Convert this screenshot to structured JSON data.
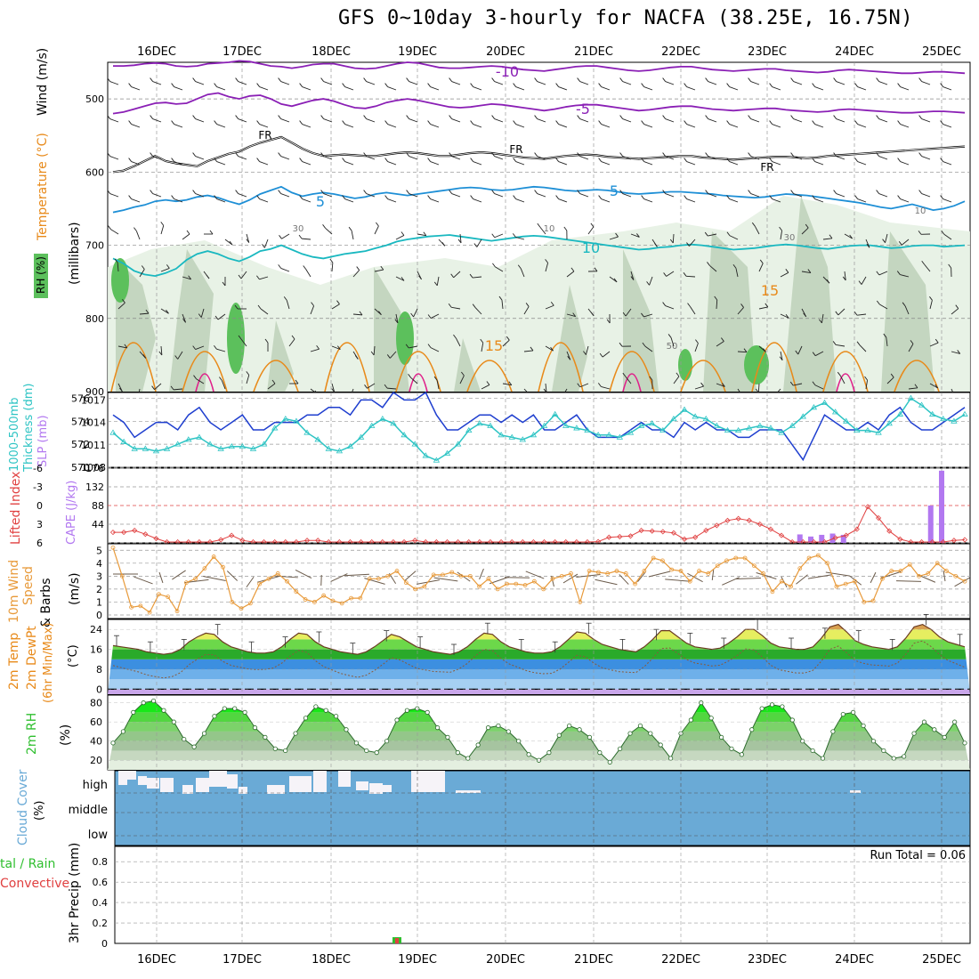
{
  "title": "GFS 0~10day 3-hourly for NACFA (38.25E, 16.75N)",
  "colors": {
    "temp_cold": "#8a1fb5",
    "temp_fr": "#000000",
    "temp_5": "#1e8fd6",
    "temp_10": "#19b8c0",
    "temp_15": "#e88a1a",
    "temp_20": "#e0208a",
    "rh_light": "#e6f1e3",
    "rh_mid": "#c4d6c0",
    "rh_dark": "#8fa890",
    "rh_green": "#5cc05c",
    "slp": "#1f3fcf",
    "thickness": "#2ec4c4",
    "lifted": "#e04040",
    "cape": "#b278f0",
    "wind10": "#e89a3a",
    "cloud": "#6aaad6",
    "precip_rain": "#2fbf2f",
    "precip_conv": "#e04040"
  },
  "chart_data": [
    {
      "id": "upper_air",
      "type": "contour",
      "days": [
        "16DEC",
        "17DEC",
        "18DEC",
        "19DEC",
        "20DEC",
        "21DEC",
        "22DEC",
        "23DEC",
        "24DEC",
        "25DEC"
      ],
      "ylabel": "(millibars)",
      "left_labels": [
        "Wind (m/s)",
        "Temperature (°C)",
        "RH (%)"
      ],
      "yticks": [
        500,
        600,
        700,
        800,
        900
      ],
      "ylim": [
        450,
        900
      ],
      "isotherm_labels": [
        "-10",
        "-5",
        "FR",
        "5",
        "10",
        "15",
        "15"
      ],
      "rh_labels": [
        "30",
        "10",
        "50",
        "30",
        "10"
      ],
      "temp_series": [
        {
          "name": "-10",
          "values": [
            455,
            455,
            454,
            452,
            451,
            452,
            455,
            456,
            455,
            452,
            451,
            450,
            448,
            449,
            452,
            455,
            456,
            458,
            456,
            453,
            452,
            452,
            455,
            458,
            459,
            458,
            455,
            452,
            450,
            451,
            454,
            457,
            458,
            458,
            457,
            456,
            455,
            456,
            458,
            460,
            461,
            462,
            460,
            458,
            456,
            455,
            455,
            457,
            459,
            461,
            462,
            461,
            459,
            457,
            456,
            456,
            458,
            460,
            461,
            462,
            461,
            460,
            459,
            459,
            461,
            462,
            463,
            464,
            463,
            461,
            460,
            461,
            462,
            463,
            464,
            465,
            465,
            464,
            463,
            463,
            464,
            465
          ]
        },
        {
          "name": "-5",
          "values": [
            520,
            518,
            514,
            510,
            506,
            505,
            507,
            506,
            500,
            494,
            492,
            497,
            500,
            496,
            495,
            500,
            507,
            510,
            506,
            502,
            500,
            503,
            508,
            512,
            513,
            510,
            505,
            502,
            500,
            502,
            505,
            508,
            511,
            512,
            511,
            509,
            507,
            508,
            510,
            512,
            514,
            516,
            514,
            511,
            509,
            508,
            508,
            510,
            512,
            514,
            516,
            515,
            513,
            511,
            510,
            510,
            512,
            514,
            515,
            516,
            515,
            514,
            513,
            513,
            515,
            516,
            517,
            518,
            517,
            515,
            514,
            515,
            516,
            517,
            518,
            519,
            519,
            518,
            517,
            517,
            518,
            519
          ]
        },
        {
          "name": "FR",
          "values": [
            600,
            598,
            592,
            585,
            578,
            585,
            588,
            590,
            592,
            585,
            580,
            575,
            572,
            565,
            560,
            556,
            552,
            560,
            568,
            574,
            578,
            577,
            576,
            577,
            578,
            578,
            576,
            574,
            573,
            574,
            576,
            578,
            578,
            576,
            574,
            573,
            574,
            576,
            578,
            580,
            581,
            582,
            580,
            578,
            577,
            576,
            577,
            579,
            580,
            581,
            582,
            581,
            580,
            579,
            578,
            578,
            580,
            581,
            582,
            583,
            582,
            581,
            580,
            579,
            579,
            580,
            581,
            580,
            578,
            577,
            576,
            575,
            574,
            573,
            572,
            571,
            570,
            569,
            568,
            567,
            566,
            565
          ]
        },
        {
          "name": "5",
          "values": [
            655,
            652,
            648,
            645,
            640,
            638,
            640,
            638,
            634,
            632,
            635,
            640,
            644,
            638,
            630,
            625,
            620,
            628,
            633,
            630,
            628,
            630,
            633,
            636,
            634,
            630,
            628,
            630,
            632,
            630,
            628,
            626,
            624,
            622,
            621,
            622,
            624,
            625,
            624,
            622,
            620,
            621,
            623,
            625,
            626,
            625,
            624,
            625,
            627,
            629,
            630,
            629,
            628,
            627,
            627,
            628,
            629,
            630,
            632,
            633,
            634,
            635,
            634,
            632,
            630,
            631,
            632,
            634,
            636,
            638,
            640,
            642,
            645,
            648,
            650,
            647,
            644,
            648,
            652,
            650,
            646,
            640
          ]
        },
        {
          "name": "10",
          "values": [
            718,
            725,
            735,
            740,
            742,
            738,
            732,
            720,
            712,
            708,
            712,
            718,
            722,
            716,
            708,
            705,
            700,
            706,
            712,
            716,
            718,
            715,
            712,
            710,
            708,
            704,
            700,
            695,
            692,
            690,
            688,
            687,
            686,
            688,
            690,
            692,
            694,
            692,
            690,
            688,
            687,
            688,
            690,
            692,
            694,
            696,
            698,
            700,
            702,
            704,
            706,
            705,
            703,
            702,
            700,
            699,
            700,
            702,
            704,
            706,
            705,
            704,
            702,
            700,
            699,
            700,
            702,
            704,
            705,
            703,
            701,
            700,
            700,
            702,
            704,
            703,
            701,
            700,
            700,
            702,
            701,
            700
          ]
        }
      ]
    },
    {
      "id": "slp_thickness",
      "type": "line",
      "y2label": "SLP (mb)",
      "ylabel": "1000-500mb Thickness (dm)",
      "yticks_left": [
        570,
        572,
        574,
        576
      ],
      "yticks_right": [
        1008,
        1011,
        1014,
        1017
      ],
      "ylim_left": [
        570,
        576.5
      ],
      "ylim_right": [
        1008,
        1018
      ],
      "series": [
        {
          "name": "SLP",
          "axis": "right",
          "values": [
            1015,
            1014,
            1012,
            1013,
            1014,
            1014,
            1013,
            1015,
            1016,
            1014,
            1013,
            1014,
            1015,
            1013,
            1013,
            1014,
            1014,
            1014,
            1015,
            1015,
            1016,
            1016,
            1015,
            1017,
            1017,
            1016,
            1018,
            1017,
            1017,
            1018,
            1015,
            1013,
            1013,
            1014,
            1015,
            1015,
            1014,
            1015,
            1014,
            1015,
            1013,
            1013,
            1014,
            1015,
            1013,
            1012,
            1012,
            1012,
            1013,
            1014,
            1013,
            1013,
            1012,
            1014,
            1013,
            1014,
            1013,
            1013,
            1012,
            1012,
            1013,
            1013,
            1013,
            1011,
            1009,
            1012,
            1015,
            1014,
            1013,
            1013,
            1014,
            1013,
            1015,
            1016,
            1014,
            1013,
            1013,
            1014,
            1015,
            1016
          ]
        },
        {
          "name": "Thickness",
          "axis": "left",
          "values": [
            573.0,
            572.2,
            571.6,
            571.6,
            571.4,
            571.6,
            572.0,
            572.4,
            572.6,
            572.0,
            571.6,
            571.8,
            571.8,
            571.6,
            572.0,
            573.4,
            574.2,
            574.0,
            573.0,
            572.4,
            571.6,
            571.4,
            571.8,
            572.6,
            573.6,
            574.2,
            573.8,
            572.8,
            572.0,
            571.0,
            570.6,
            571.2,
            572.0,
            573.2,
            573.8,
            573.6,
            572.8,
            572.6,
            572.4,
            572.8,
            573.6,
            574.6,
            573.6,
            573.4,
            573.2,
            572.8,
            572.8,
            572.6,
            573.0,
            573.6,
            573.8,
            573.2,
            574.2,
            575.0,
            574.4,
            574.2,
            573.6,
            573.2,
            573.2,
            573.4,
            573.6,
            573.4,
            573.0,
            573.6,
            574.4,
            575.2,
            575.6,
            574.8,
            574.0,
            573.2,
            573.2,
            573.0,
            573.8,
            574.6,
            576.0,
            575.4,
            574.6,
            574.2,
            574.0,
            574.6
          ]
        }
      ]
    },
    {
      "id": "lifted_cape",
      "type": "bar",
      "ylabel": "Lifted Index",
      "y2label": "CAPE (J/kg)",
      "yticks_left": [
        "-6",
        "-3",
        "0",
        "3",
        "6"
      ],
      "yticks_right": [
        "44",
        "88",
        "132",
        "176"
      ],
      "ylim_cape": [
        0,
        176
      ],
      "lifted_index": [
        4.3,
        4.3,
        4.0,
        4.6,
        5.3,
        6.0,
        6.5,
        6.5,
        6.5,
        6.6,
        5.5,
        4.8,
        5.6,
        6.5,
        6.5,
        6.5,
        6.5,
        6.5,
        5.6,
        5.6,
        6.5,
        6.5,
        6.5,
        6.5,
        6.6,
        6.5,
        6.5,
        6.5,
        5.6,
        6.5,
        6.5,
        6.5,
        6.5,
        6.5,
        6.5,
        6.5,
        6.5,
        6.5,
        6.5,
        6.5,
        6.5,
        6.5,
        6.5,
        6.5,
        6.5,
        5.8,
        5.1,
        5.0,
        4.9,
        4.0,
        4.1,
        4.2,
        4.4,
        5.4,
        5.1,
        4.0,
        3.2,
        2.4,
        2.1,
        2.4,
        3.0,
        3.8,
        4.8,
        5.9,
        6.6,
        6.6,
        6.1,
        5.2,
        4.8,
        3.8,
        0.2,
        2.0,
        4.1,
        5.4,
        6.4,
        6.6,
        5.9,
        6.2,
        5.6,
        5.5
      ],
      "cape_bars": [
        {
          "slot": 61,
          "value": 20
        },
        {
          "slot": 62,
          "value": 15
        },
        {
          "slot": 63,
          "value": 19
        },
        {
          "slot": 64,
          "value": 22
        },
        {
          "slot": 65,
          "value": 19
        },
        {
          "slot": 73,
          "value": 88
        },
        {
          "slot": 74,
          "value": 170
        }
      ]
    },
    {
      "id": "wind10",
      "type": "line",
      "ylabel": "10m Wind Speed & Barbs (m/s)",
      "yticks": [
        0,
        1,
        2,
        3,
        4,
        5
      ],
      "ylim": [
        0,
        5.5
      ],
      "values": [
        5.2,
        3.0,
        0.6,
        0.7,
        0.2,
        1.6,
        1.4,
        0.3,
        2.5,
        2.8,
        3.6,
        4.5,
        3.7,
        1.0,
        0.5,
        0.9,
        2.4,
        2.8,
        3.2,
        2.6,
        1.8,
        1.2,
        1.0,
        1.5,
        1.1,
        0.9,
        1.3,
        1.3,
        2.8,
        2.8,
        3.0,
        3.4,
        2.5,
        2.0,
        2.2,
        3.1,
        3.1,
        3.3,
        3.0,
        3.0,
        2.2,
        2.8,
        2.0,
        2.4,
        2.4,
        2.3,
        2.6,
        2.0,
        2.8,
        3.0,
        3.2,
        1.0,
        3.4,
        3.3,
        3.2,
        3.4,
        3.2,
        2.4,
        3.4,
        4.4,
        4.2,
        3.5,
        3.4,
        2.6,
        3.4,
        3.2,
        3.8,
        4.2,
        4.4,
        4.4,
        3.8,
        3.2,
        1.8,
        2.6,
        2.2,
        3.6,
        4.4,
        4.6,
        4.0,
        2.2,
        2.4,
        2.6,
        1.0,
        1.1,
        2.8,
        3.4,
        3.4,
        3.9,
        3.0,
        3.2,
        4.0,
        3.4,
        3.0,
        2.6
      ]
    },
    {
      "id": "temp2m",
      "type": "area",
      "ylabel": "2m Temp 2m DewPt (6hr Min/Max) (°C)",
      "yticks": [
        0,
        8,
        16,
        24
      ],
      "ylim": [
        -2,
        28
      ],
      "temperature": [
        17.5,
        17,
        16.5,
        16,
        15,
        14.5,
        14,
        14.5,
        16,
        19,
        21,
        22.5,
        22,
        19,
        17,
        16,
        15,
        14.5,
        14.5,
        15,
        17,
        20,
        22.5,
        22,
        19,
        17,
        16,
        15,
        14.5,
        14,
        15,
        17,
        19.5,
        22,
        21,
        19,
        17,
        16,
        15,
        14.5,
        14,
        15,
        17,
        20,
        22.5,
        22,
        19,
        17,
        16,
        15,
        14.5,
        14.5,
        15,
        17,
        20,
        23,
        22.5,
        20,
        18,
        17,
        16,
        15.5,
        15,
        17,
        20,
        23.5,
        23.5,
        21,
        18.5,
        17,
        16.5,
        16,
        16.5,
        18.5,
        21,
        24,
        24,
        21.5,
        18.5,
        17,
        16.5,
        16,
        16,
        17,
        20.5,
        25,
        26,
        23,
        19.5,
        18,
        17,
        16.5,
        16,
        17,
        20.5,
        25,
        26,
        24,
        21,
        19,
        18,
        17
      ]
    },
    {
      "id": "rh2m",
      "type": "area",
      "ylabel": "2m RH (%)",
      "yticks": [
        20,
        40,
        60,
        80
      ],
      "ylim": [
        10,
        88
      ],
      "values": [
        38,
        50,
        70,
        80,
        82,
        72,
        60,
        42,
        34,
        48,
        66,
        74,
        74,
        70,
        54,
        44,
        32,
        30,
        48,
        64,
        76,
        72,
        66,
        52,
        38,
        30,
        28,
        40,
        62,
        72,
        74,
        70,
        54,
        44,
        28,
        22,
        36,
        54,
        56,
        50,
        40,
        26,
        20,
        28,
        46,
        56,
        52,
        44,
        28,
        18,
        32,
        48,
        56,
        48,
        36,
        22,
        48,
        62,
        80,
        64,
        44,
        32,
        26,
        52,
        74,
        78,
        76,
        62,
        40,
        30,
        22,
        50,
        68,
        70,
        56,
        40,
        30,
        22,
        24,
        48,
        60,
        52,
        44,
        60,
        38
      ]
    },
    {
      "id": "cloud",
      "type": "bar",
      "ylabel": "Cloud Cover (%)",
      "layers": [
        "high",
        "middle",
        "low"
      ]
    },
    {
      "id": "precip",
      "type": "bar",
      "ylabel": "3hr Precip (mm)",
      "legend": [
        "Total / Rain",
        "Convective"
      ],
      "annotation": "Run Total = 0.06",
      "yticks": [
        "0",
        "0.2",
        "0.4",
        "0.6",
        "0.8"
      ],
      "ylim": [
        0,
        0.95
      ],
      "bars": [
        {
          "slot": 26,
          "value": 0.06
        }
      ]
    }
  ],
  "panel_labels": {
    "wind": "Wind (m/s)",
    "temperature": "Temperature (°C)",
    "rh": "RH (%)",
    "millibars": "(millibars)",
    "thickness1": "1000-500mb",
    "thickness2": "Thickness (dm)",
    "slp": "SLP (mb)",
    "lifted": "Lifted Index",
    "cape": "CAPE (J/kg)",
    "wind10_1": "10m Wind",
    "wind10_2": "Speed",
    "wind10_3": "& Barbs",
    "wind10_4": "(m/s)",
    "t2m_1": "2m Temp",
    "t2m_2": "2m DewPt",
    "t2m_3": "(6hr Min/Max)",
    "t2m_4": "(°C)",
    "rh2m_1": "2m RH",
    "rh2m_2": "(%)",
    "cloud_1": "Cloud Cover",
    "cloud_2": "(%)",
    "cloud_high": "high",
    "cloud_middle": "middle",
    "cloud_low": "low",
    "precip_1": "3hr Precip (mm)",
    "precip_total": "tal / Rain",
    "precip_conv": "Convective",
    "run_total": "Run Total = 0.06"
  }
}
